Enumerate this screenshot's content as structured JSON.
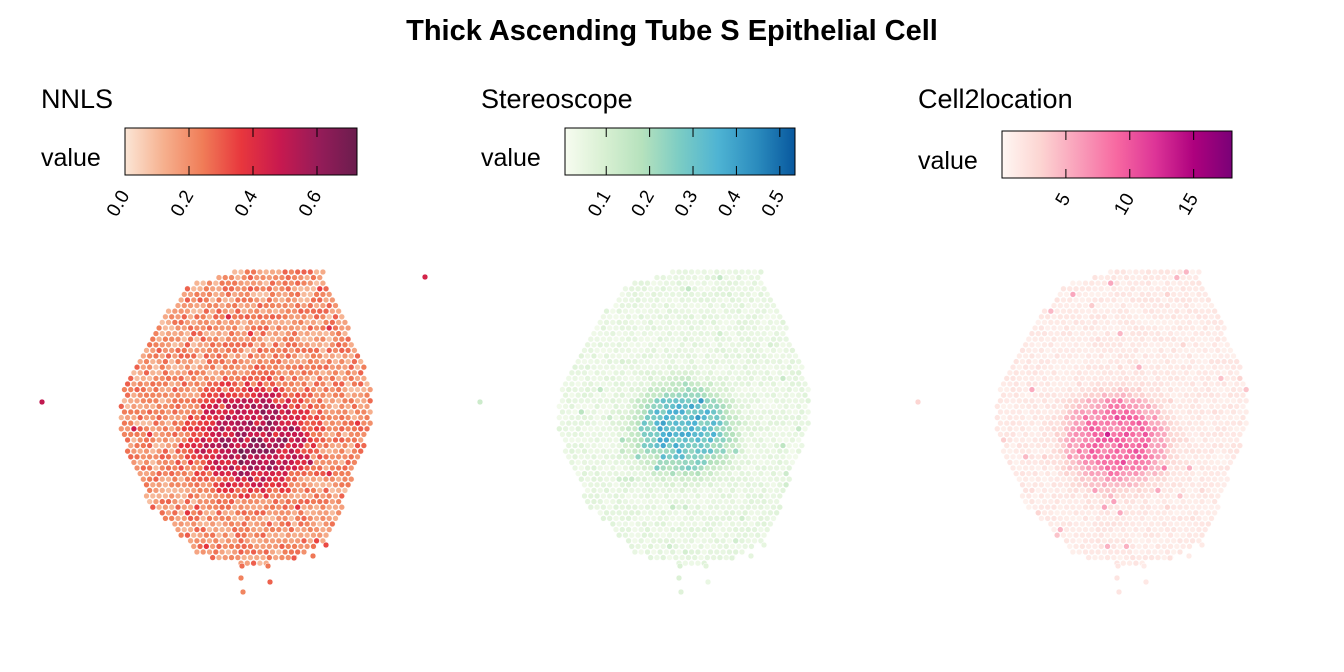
{
  "chart_data": {
    "type": "scatter",
    "subtype": "spatial-spot-map",
    "title": "Thick Ascending Tube S Epithelial Cell",
    "panels": [
      {
        "name": "NNLS",
        "legend_label": "value",
        "range": [
          0.0,
          0.725
        ],
        "ticks": [
          0.0,
          0.2,
          0.4,
          0.6
        ],
        "tick_labels": [
          "0.0",
          "0.2",
          "0.4",
          "0.6"
        ],
        "colors": [
          "#fbe6d6",
          "#f6b08e",
          "#f07d58",
          "#e8373d",
          "#c8194f",
          "#961c59",
          "#6b1d4e"
        ],
        "background_level": 0.2,
        "hotspot_level": 0.55
      },
      {
        "name": "Stereoscope",
        "legend_label": "value",
        "range": [
          0.005,
          0.535
        ],
        "ticks": [
          0.1,
          0.2,
          0.3,
          0.4,
          0.5
        ],
        "tick_labels": [
          "0.1",
          "0.2",
          "0.3",
          "0.4",
          "0.5"
        ],
        "colors": [
          "#f7fcf0",
          "#d9f0d3",
          "#b6e2bd",
          "#7bccc4",
          "#4eb3d3",
          "#2b8cbe",
          "#08589e"
        ],
        "background_level": 0.05,
        "hotspot_level": 0.33
      },
      {
        "name": "Cell2location",
        "legend_label": "value",
        "range": [
          0,
          18
        ],
        "ticks": [
          5,
          10,
          15
        ],
        "tick_labels": [
          "5",
          "10",
          "15"
        ],
        "colors": [
          "#fff7f3",
          "#fcd5d2",
          "#f99fba",
          "#f768a1",
          "#dd3497",
          "#ae017e",
          "#7a0177"
        ],
        "background_level": 1.2,
        "hotspot_level": 9
      }
    ],
    "legend_placement": "top",
    "grid": false
  }
}
